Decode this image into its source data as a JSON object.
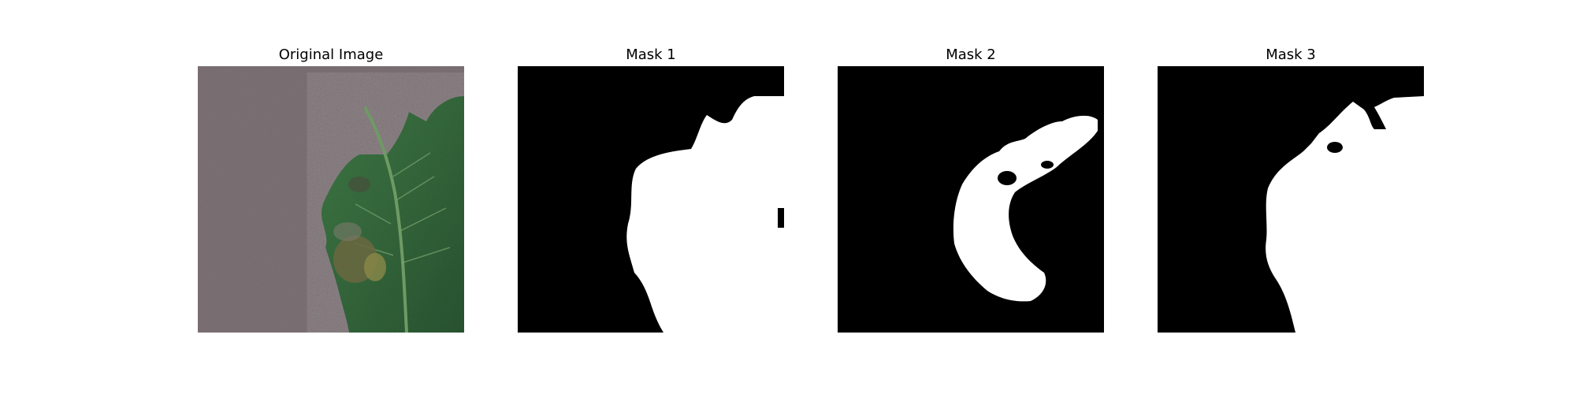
{
  "panels": [
    {
      "title": "Original Image",
      "kind": "photo"
    },
    {
      "title": "Mask 1",
      "kind": "mask"
    },
    {
      "title": "Mask 2",
      "kind": "mask"
    },
    {
      "title": "Mask 3",
      "kind": "mask"
    }
  ],
  "colors": {
    "background": "#7f7377",
    "leaf_dark": "#2f5a36",
    "leaf_light": "#4f8a55",
    "lesion": "#6b6a3a",
    "mask_bg": "#000000",
    "mask_fg": "#ffffff"
  }
}
